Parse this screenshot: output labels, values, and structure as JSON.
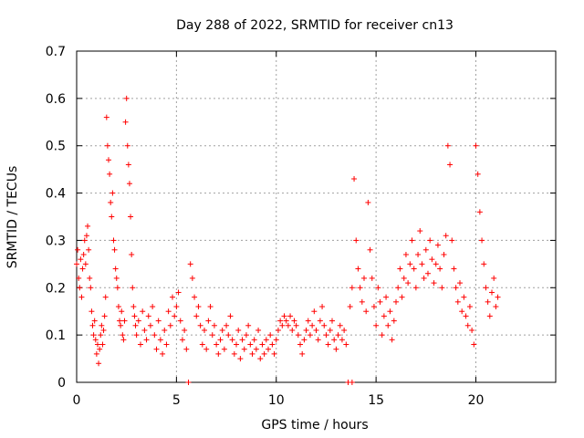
{
  "chart_data": {
    "type": "scatter",
    "title": "Day 288 of 2022, SRMTID for receiver cn13",
    "xlabel": "GPS time / hours",
    "ylabel": "SRMTID / TECUs",
    "xlim": [
      0,
      24
    ],
    "ylim": [
      0,
      0.7
    ],
    "xticks": [
      "0",
      "5",
      "10",
      "15",
      "20"
    ],
    "xtick_values": [
      0,
      5,
      10,
      15,
      20
    ],
    "yticks": [
      "0",
      "0.1",
      "0.2",
      "0.3",
      "0.4",
      "0.5",
      "0.6",
      "0.7"
    ],
    "ytick_values": [
      0,
      0.1,
      0.2,
      0.3,
      0.4,
      0.5,
      0.6,
      0.7
    ],
    "grid": true,
    "marker": "+",
    "color": "#ff0000",
    "series": [
      {
        "name": "SRMTID",
        "points": [
          [
            0.0,
            0.25
          ],
          [
            0.05,
            0.28
          ],
          [
            0.1,
            0.22
          ],
          [
            0.15,
            0.2
          ],
          [
            0.2,
            0.26
          ],
          [
            0.25,
            0.18
          ],
          [
            0.3,
            0.24
          ],
          [
            0.35,
            0.27
          ],
          [
            0.4,
            0.3
          ],
          [
            0.45,
            0.25
          ],
          [
            0.5,
            0.31
          ],
          [
            0.55,
            0.33
          ],
          [
            0.6,
            0.28
          ],
          [
            0.65,
            0.22
          ],
          [
            0.7,
            0.2
          ],
          [
            0.75,
            0.15
          ],
          [
            0.8,
            0.12
          ],
          [
            0.85,
            0.1
          ],
          [
            0.9,
            0.13
          ],
          [
            0.95,
            0.09
          ],
          [
            1.0,
            0.06
          ],
          [
            1.05,
            0.08
          ],
          [
            1.1,
            0.04
          ],
          [
            1.15,
            0.07
          ],
          [
            1.2,
            0.1
          ],
          [
            1.25,
            0.12
          ],
          [
            1.3,
            0.08
          ],
          [
            1.35,
            0.11
          ],
          [
            1.4,
            0.14
          ],
          [
            1.45,
            0.18
          ],
          [
            1.5,
            0.56
          ],
          [
            1.55,
            0.5
          ],
          [
            1.6,
            0.47
          ],
          [
            1.65,
            0.44
          ],
          [
            1.7,
            0.38
          ],
          [
            1.75,
            0.35
          ],
          [
            1.8,
            0.4
          ],
          [
            1.85,
            0.3
          ],
          [
            1.9,
            0.28
          ],
          [
            1.95,
            0.24
          ],
          [
            2.0,
            0.22
          ],
          [
            2.05,
            0.2
          ],
          [
            2.1,
            0.16
          ],
          [
            2.15,
            0.13
          ],
          [
            2.2,
            0.12
          ],
          [
            2.25,
            0.15
          ],
          [
            2.3,
            0.1
          ],
          [
            2.35,
            0.09
          ],
          [
            2.4,
            0.13
          ],
          [
            2.45,
            0.55
          ],
          [
            2.5,
            0.6
          ],
          [
            2.55,
            0.5
          ],
          [
            2.6,
            0.46
          ],
          [
            2.65,
            0.42
          ],
          [
            2.7,
            0.35
          ],
          [
            2.75,
            0.27
          ],
          [
            2.8,
            0.2
          ],
          [
            2.85,
            0.16
          ],
          [
            2.9,
            0.14
          ],
          [
            2.95,
            0.12
          ],
          [
            3.0,
            0.1
          ],
          [
            3.1,
            0.13
          ],
          [
            3.2,
            0.08
          ],
          [
            3.3,
            0.15
          ],
          [
            3.4,
            0.11
          ],
          [
            3.5,
            0.09
          ],
          [
            3.6,
            0.14
          ],
          [
            3.7,
            0.12
          ],
          [
            3.8,
            0.16
          ],
          [
            3.9,
            0.1
          ],
          [
            4.0,
            0.07
          ],
          [
            4.1,
            0.13
          ],
          [
            4.2,
            0.09
          ],
          [
            4.3,
            0.06
          ],
          [
            4.4,
            0.11
          ],
          [
            4.5,
            0.08
          ],
          [
            4.6,
            0.15
          ],
          [
            4.7,
            0.12
          ],
          [
            4.8,
            0.18
          ],
          [
            4.9,
            0.14
          ],
          [
            5.0,
            0.16
          ],
          [
            5.1,
            0.19
          ],
          [
            5.2,
            0.13
          ],
          [
            5.3,
            0.09
          ],
          [
            5.4,
            0.11
          ],
          [
            5.5,
            0.07
          ],
          [
            5.6,
            0.0
          ],
          [
            5.7,
            0.25
          ],
          [
            5.8,
            0.22
          ],
          [
            5.9,
            0.18
          ],
          [
            6.0,
            0.14
          ],
          [
            6.1,
            0.16
          ],
          [
            6.2,
            0.12
          ],
          [
            6.3,
            0.08
          ],
          [
            6.4,
            0.11
          ],
          [
            6.5,
            0.07
          ],
          [
            6.6,
            0.13
          ],
          [
            6.7,
            0.16
          ],
          [
            6.8,
            0.1
          ],
          [
            6.9,
            0.12
          ],
          [
            7.0,
            0.08
          ],
          [
            7.1,
            0.06
          ],
          [
            7.2,
            0.09
          ],
          [
            7.3,
            0.11
          ],
          [
            7.4,
            0.07
          ],
          [
            7.5,
            0.12
          ],
          [
            7.6,
            0.1
          ],
          [
            7.7,
            0.14
          ],
          [
            7.8,
            0.09
          ],
          [
            7.9,
            0.06
          ],
          [
            8.0,
            0.08
          ],
          [
            8.1,
            0.11
          ],
          [
            8.2,
            0.05
          ],
          [
            8.3,
            0.09
          ],
          [
            8.4,
            0.07
          ],
          [
            8.5,
            0.1
          ],
          [
            8.6,
            0.12
          ],
          [
            8.7,
            0.08
          ],
          [
            8.8,
            0.06
          ],
          [
            8.9,
            0.09
          ],
          [
            9.0,
            0.07
          ],
          [
            9.1,
            0.11
          ],
          [
            9.2,
            0.05
          ],
          [
            9.3,
            0.08
          ],
          [
            9.4,
            0.06
          ],
          [
            9.5,
            0.09
          ],
          [
            9.6,
            0.07
          ],
          [
            9.7,
            0.1
          ],
          [
            9.8,
            0.08
          ],
          [
            9.9,
            0.06
          ],
          [
            10.0,
            0.09
          ],
          [
            10.1,
            0.11
          ],
          [
            10.2,
            0.13
          ],
          [
            10.3,
            0.12
          ],
          [
            10.4,
            0.14
          ],
          [
            10.5,
            0.13
          ],
          [
            10.6,
            0.12
          ],
          [
            10.7,
            0.14
          ],
          [
            10.8,
            0.11
          ],
          [
            10.9,
            0.13
          ],
          [
            11.0,
            0.12
          ],
          [
            11.1,
            0.1
          ],
          [
            11.2,
            0.08
          ],
          [
            11.3,
            0.06
          ],
          [
            11.4,
            0.09
          ],
          [
            11.5,
            0.11
          ],
          [
            11.6,
            0.13
          ],
          [
            11.7,
            0.1
          ],
          [
            11.8,
            0.12
          ],
          [
            11.9,
            0.15
          ],
          [
            12.0,
            0.11
          ],
          [
            12.1,
            0.09
          ],
          [
            12.2,
            0.13
          ],
          [
            12.3,
            0.16
          ],
          [
            12.4,
            0.12
          ],
          [
            12.5,
            0.1
          ],
          [
            12.6,
            0.08
          ],
          [
            12.7,
            0.11
          ],
          [
            12.8,
            0.13
          ],
          [
            12.9,
            0.09
          ],
          [
            13.0,
            0.07
          ],
          [
            13.1,
            0.1
          ],
          [
            13.2,
            0.12
          ],
          [
            13.3,
            0.09
          ],
          [
            13.4,
            0.11
          ],
          [
            13.5,
            0.08
          ],
          [
            13.6,
            0.0
          ],
          [
            13.8,
            0.0
          ],
          [
            13.7,
            0.16
          ],
          [
            13.8,
            0.2
          ],
          [
            13.9,
            0.43
          ],
          [
            14.0,
            0.3
          ],
          [
            14.1,
            0.24
          ],
          [
            14.2,
            0.2
          ],
          [
            14.3,
            0.17
          ],
          [
            14.4,
            0.22
          ],
          [
            14.5,
            0.15
          ],
          [
            14.6,
            0.38
          ],
          [
            14.7,
            0.28
          ],
          [
            14.8,
            0.22
          ],
          [
            14.9,
            0.16
          ],
          [
            15.0,
            0.12
          ],
          [
            15.1,
            0.2
          ],
          [
            15.2,
            0.17
          ],
          [
            15.3,
            0.1
          ],
          [
            15.4,
            0.14
          ],
          [
            15.5,
            0.18
          ],
          [
            15.6,
            0.12
          ],
          [
            15.7,
            0.15
          ],
          [
            15.8,
            0.09
          ],
          [
            15.9,
            0.13
          ],
          [
            16.0,
            0.17
          ],
          [
            16.1,
            0.2
          ],
          [
            16.2,
            0.24
          ],
          [
            16.3,
            0.18
          ],
          [
            16.4,
            0.22
          ],
          [
            16.5,
            0.27
          ],
          [
            16.6,
            0.21
          ],
          [
            16.7,
            0.25
          ],
          [
            16.8,
            0.3
          ],
          [
            16.9,
            0.24
          ],
          [
            17.0,
            0.2
          ],
          [
            17.1,
            0.27
          ],
          [
            17.2,
            0.32
          ],
          [
            17.3,
            0.25
          ],
          [
            17.4,
            0.22
          ],
          [
            17.5,
            0.28
          ],
          [
            17.6,
            0.23
          ],
          [
            17.7,
            0.3
          ],
          [
            17.8,
            0.26
          ],
          [
            17.9,
            0.21
          ],
          [
            18.0,
            0.25
          ],
          [
            18.1,
            0.29
          ],
          [
            18.2,
            0.24
          ],
          [
            18.3,
            0.2
          ],
          [
            18.4,
            0.27
          ],
          [
            18.5,
            0.31
          ],
          [
            18.6,
            0.5
          ],
          [
            18.7,
            0.46
          ],
          [
            18.8,
            0.3
          ],
          [
            18.9,
            0.24
          ],
          [
            19.0,
            0.2
          ],
          [
            19.1,
            0.17
          ],
          [
            19.2,
            0.21
          ],
          [
            19.3,
            0.15
          ],
          [
            19.4,
            0.18
          ],
          [
            19.5,
            0.14
          ],
          [
            19.6,
            0.12
          ],
          [
            19.7,
            0.16
          ],
          [
            19.8,
            0.11
          ],
          [
            19.9,
            0.08
          ],
          [
            20.0,
            0.5
          ],
          [
            20.1,
            0.44
          ],
          [
            20.2,
            0.36
          ],
          [
            20.3,
            0.3
          ],
          [
            20.4,
            0.25
          ],
          [
            20.5,
            0.2
          ],
          [
            20.6,
            0.17
          ],
          [
            20.7,
            0.14
          ],
          [
            20.8,
            0.19
          ],
          [
            20.9,
            0.22
          ],
          [
            21.0,
            0.16
          ],
          [
            21.1,
            0.18
          ]
        ]
      }
    ]
  }
}
